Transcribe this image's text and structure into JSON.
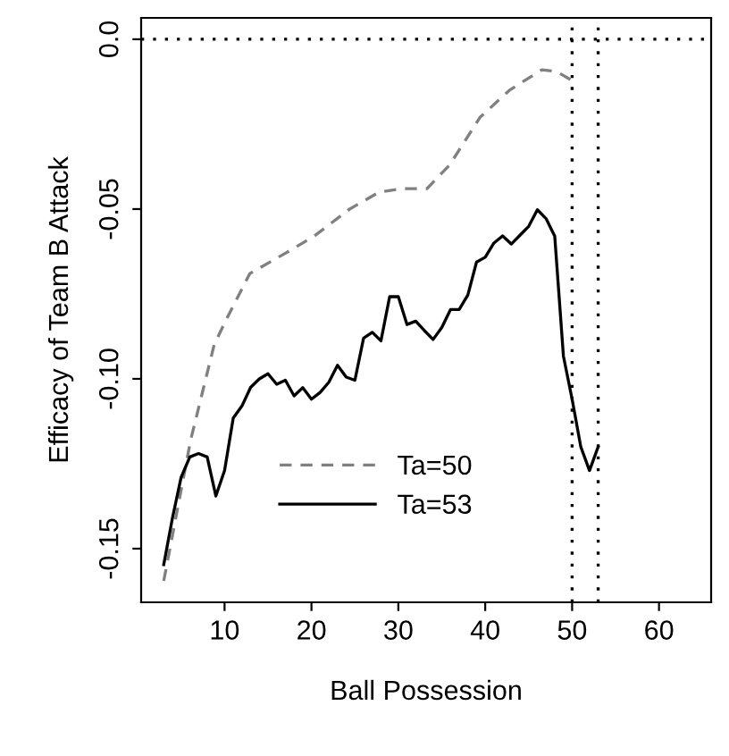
{
  "chart_data": {
    "type": "line",
    "xlabel": "Ball Possession",
    "ylabel": "Efficacy of Team B Attack",
    "xlim": [
      0.4,
      66
    ],
    "ylim": [
      -0.1658,
      0.0063
    ],
    "xticks": [
      10,
      20,
      30,
      40,
      50,
      60
    ],
    "yticks": [
      {
        "value": 0,
        "label": "0.0"
      },
      {
        "value": -0.05,
        "label": "-0.05"
      },
      {
        "value": -0.1,
        "label": "-0.10"
      },
      {
        "value": -0.15,
        "label": "-0.15"
      }
    ],
    "grid": false,
    "legend": "bottom",
    "marker": "none",
    "ref_lines": [
      {
        "axis": "y",
        "value": 0,
        "line_style": "dotted",
        "color": "#000000"
      },
      {
        "axis": "x",
        "value": 50,
        "line_style": "dotted",
        "color": "#000000"
      },
      {
        "axis": "x",
        "value": 53,
        "line_style": "dotted",
        "color": "#000000"
      }
    ],
    "series": [
      {
        "name": "Ta=50",
        "color": "#808080",
        "line_style": "dashed",
        "x": [
          3,
          6.1,
          8.8,
          10.1,
          12.9,
          17,
          20.3,
          24.4,
          27.8,
          30.5,
          33.3,
          35.9,
          39.4,
          42.8,
          46.5,
          48.2,
          49.9
        ],
        "values": [
          -0.1595,
          -0.118,
          -0.09,
          -0.083,
          -0.069,
          -0.063,
          -0.058,
          -0.05,
          -0.045,
          -0.044,
          -0.044,
          -0.037,
          -0.023,
          -0.015,
          -0.009,
          -0.0095,
          -0.012
        ]
      },
      {
        "name": "Ta=53",
        "color": "#000000",
        "line_style": "solid",
        "x": [
          3,
          4,
          5,
          6,
          7,
          8,
          9,
          10,
          11,
          12,
          13,
          14,
          15,
          16,
          17,
          18,
          19,
          20,
          21,
          22,
          23,
          24,
          25,
          26,
          27,
          28,
          29,
          30,
          31,
          32,
          33,
          34,
          35,
          36,
          37,
          38,
          39,
          40,
          41,
          42,
          43,
          44,
          45,
          46,
          47,
          48,
          49,
          50,
          51,
          52,
          53
        ],
        "values": [
          -0.1547,
          -0.141,
          -0.129,
          -0.123,
          -0.122,
          -0.123,
          -0.1345,
          -0.127,
          -0.1115,
          -0.108,
          -0.1025,
          -0.1,
          -0.0985,
          -0.1016,
          -0.1004,
          -0.105,
          -0.1026,
          -0.106,
          -0.104,
          -0.101,
          -0.096,
          -0.0995,
          -0.1004,
          -0.088,
          -0.0863,
          -0.0888,
          -0.0758,
          -0.0758,
          -0.084,
          -0.083,
          -0.0858,
          -0.0884,
          -0.0849,
          -0.0796,
          -0.0796,
          -0.0753,
          -0.0656,
          -0.0642,
          -0.06,
          -0.0579,
          -0.0603,
          -0.0577,
          -0.0551,
          -0.0502,
          -0.0528,
          -0.058,
          -0.0933,
          -0.106,
          -0.12,
          -0.127,
          -0.12
        ]
      }
    ]
  }
}
